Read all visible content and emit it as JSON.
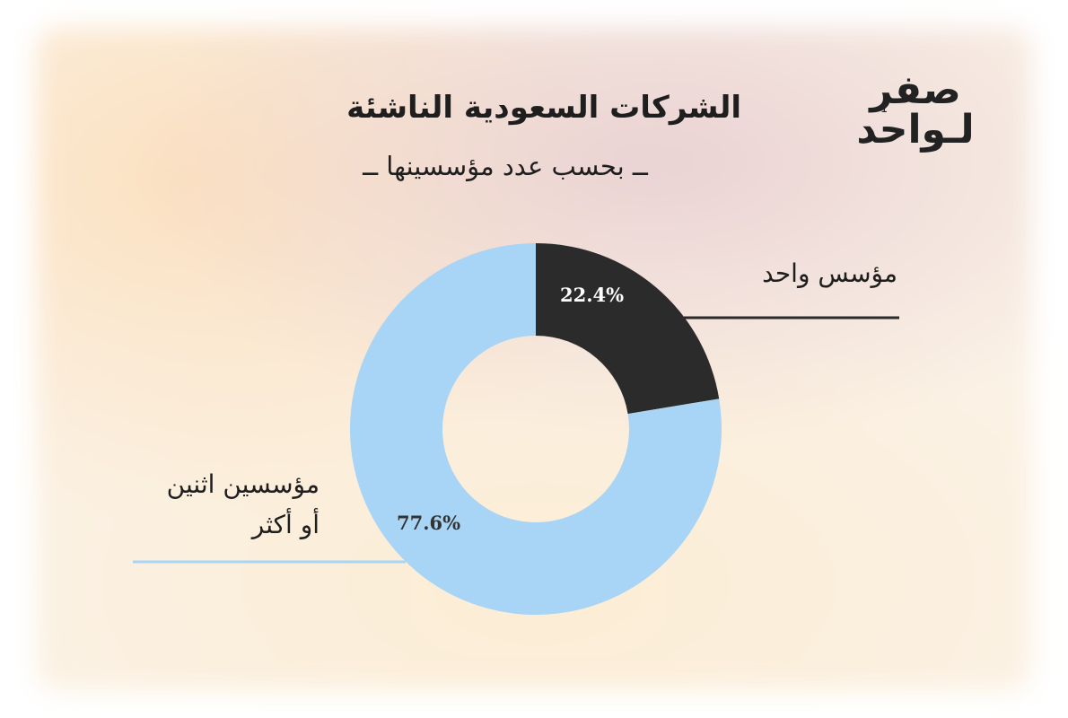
{
  "title": "الشركات السعودية الناشئة",
  "subtitle": "ــ بحسب عدد مؤسسينها ــ",
  "logo": {
    "line1": "صفر",
    "line2": "لـواحد",
    "mark": "1"
  },
  "colors": {
    "one_founder": "#2b2b2b",
    "two_or_more": "#a8d4f5"
  },
  "chart_data": {
    "type": "pie",
    "variant": "donut",
    "categories": [
      "مؤسس واحد",
      "مؤسسين اثنين أو أكثر"
    ],
    "values": [
      22.4,
      77.6
    ],
    "labels_display": [
      "22.4%",
      "77.6%"
    ],
    "label_line1": {
      "one": "مؤسس واحد",
      "two_a": "مؤسسين اثنين",
      "two_b": "أو أكثر"
    }
  }
}
